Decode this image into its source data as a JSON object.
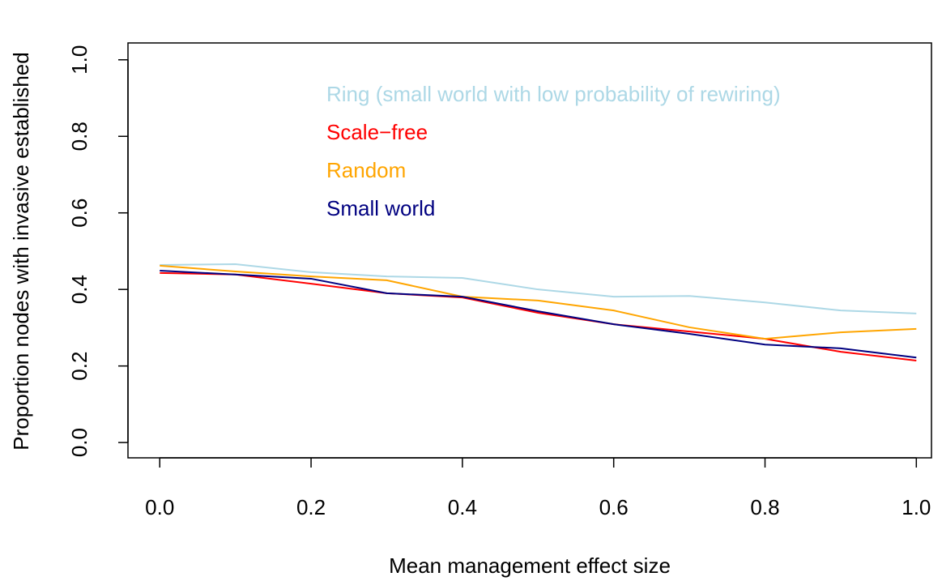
{
  "chart_data": {
    "type": "line",
    "x_label": "Mean management effect size",
    "y_label": "Proportion nodes with invasive established",
    "x": [
      0,
      0.1,
      0.2,
      0.3,
      0.4,
      0.5,
      0.6,
      0.7,
      0.8,
      0.9,
      1
    ],
    "series": [
      {
        "name": "Ring (small world with low probability of rewiring)",
        "color": "#add8e6",
        "values": [
          0.464,
          0.466,
          0.445,
          0.434,
          0.43,
          0.4,
          0.381,
          0.383,
          0.366,
          0.345,
          0.337
        ]
      },
      {
        "name": "Scale−free",
        "color": "#ff0000",
        "values": [
          0.443,
          0.439,
          0.415,
          0.39,
          0.379,
          0.339,
          0.309,
          0.29,
          0.271,
          0.237,
          0.214
        ]
      },
      {
        "name": "Random",
        "color": "#ffa500",
        "values": [
          0.462,
          0.447,
          0.434,
          0.424,
          0.381,
          0.371,
          0.345,
          0.301,
          0.271,
          0.288,
          0.297
        ]
      },
      {
        "name": "Small world",
        "color": "#000080",
        "values": [
          0.449,
          0.439,
          0.428,
          0.39,
          0.381,
          0.343,
          0.309,
          0.284,
          0.256,
          0.246,
          0.222
        ]
      }
    ],
    "xlim": [
      -0.042,
      1.02
    ],
    "ylim": [
      -0.04,
      1.044
    ],
    "xticks": [
      {
        "value": 0,
        "label": "0.0"
      },
      0.2,
      0.4,
      0.6,
      0.8,
      {
        "value": 1,
        "label": "1.0"
      }
    ],
    "yticks": [
      {
        "value": 0,
        "label": "0.0"
      },
      0.2,
      0.4,
      0.6,
      0.8,
      {
        "value": 1,
        "label": "1.0"
      }
    ],
    "grid": false
  }
}
